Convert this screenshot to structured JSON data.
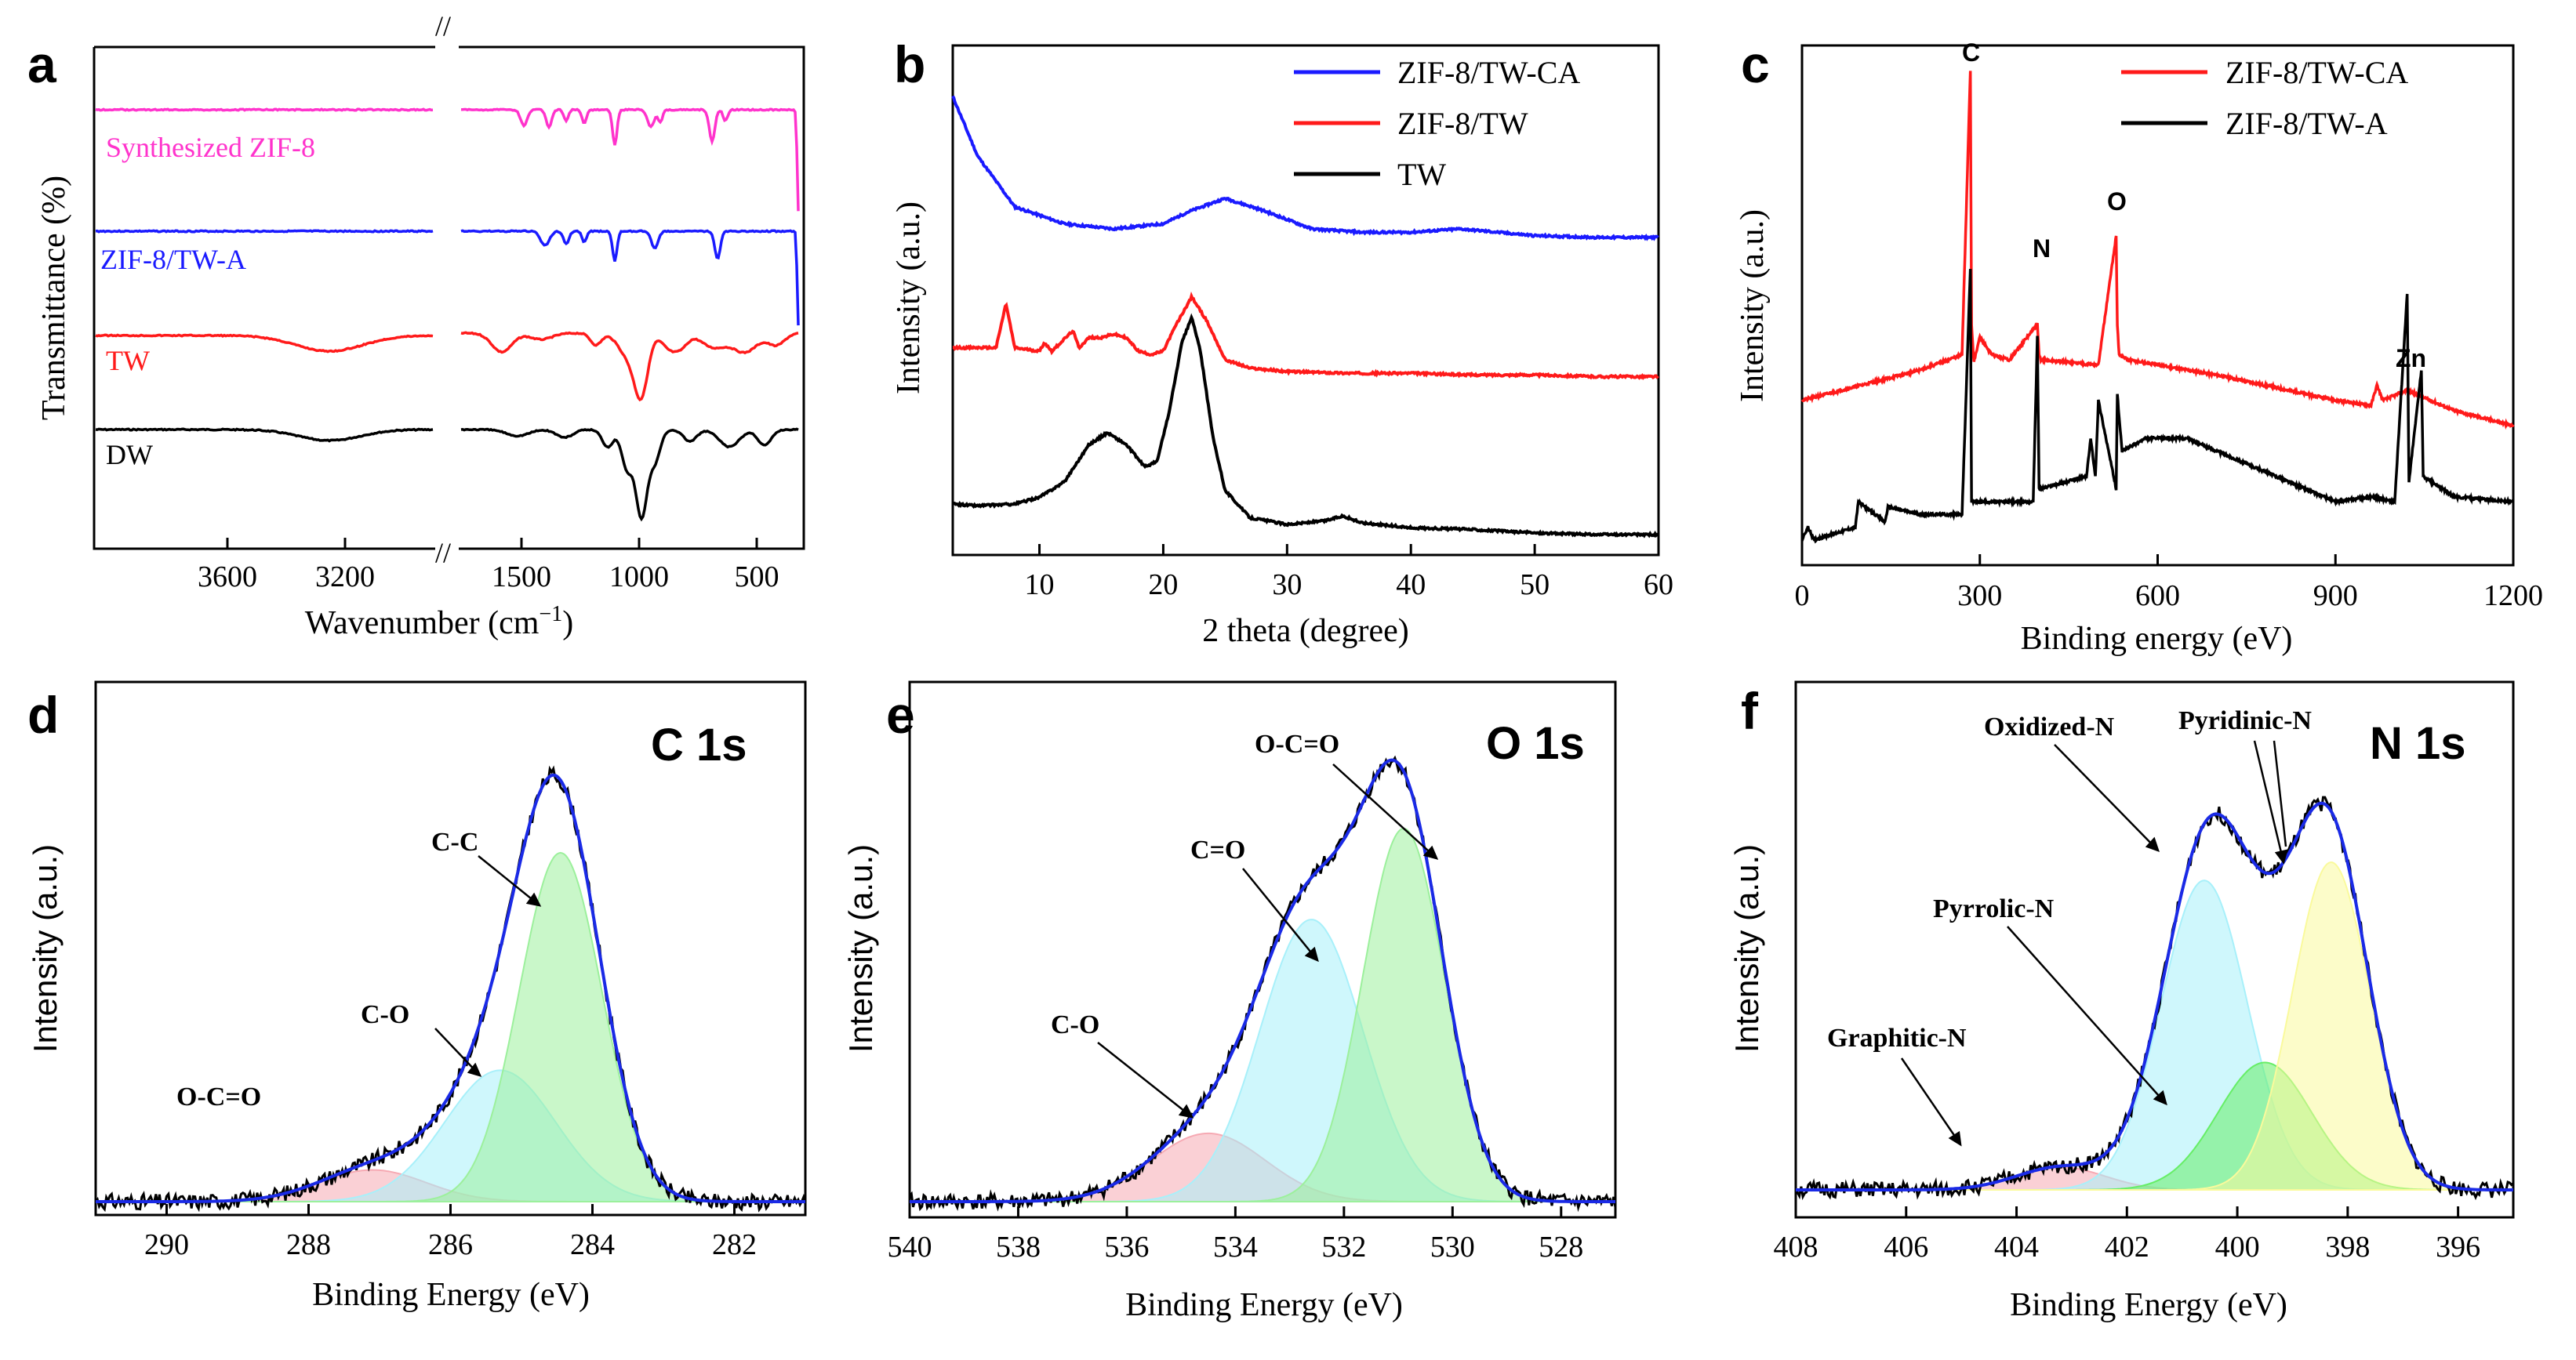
{
  "colors": {
    "blue": "#1a1aff",
    "red": "#ff1a1a",
    "black": "#000000",
    "magenta": "#ff33cc",
    "pinkfill": "#f6a9b3",
    "cyanfill": "#a8f0fa",
    "greenfill": "#9cf09c",
    "yellowfill": "#fafa9c",
    "envelope": "#1a2ae6"
  },
  "chart_data": [
    {
      "panel": "a",
      "type": "line",
      "xlabel": "Wavenumber (cm",
      "xlabel_sup": "−1",
      "xlabel_close": ")",
      "ylabel": "Transmittance (%)",
      "xticks_left": [
        3600,
        3200
      ],
      "xticks_right": [
        1500,
        1000,
        500
      ],
      "axis_break": "//",
      "series": [
        {
          "name": "Synthesized ZIF-8",
          "color": "#ff33cc"
        },
        {
          "name": "ZIF-8/TW-A",
          "color": "#1a1aff"
        },
        {
          "name": "TW",
          "color": "#ff1a1a"
        },
        {
          "name": "DW",
          "color": "#000000"
        }
      ]
    },
    {
      "panel": "b",
      "type": "line",
      "xlabel": "2 theta (degree)",
      "ylabel": "Intensity (a.u.)",
      "xlim": [
        3,
        60
      ],
      "xticks": [
        10,
        20,
        30,
        40,
        50,
        60
      ],
      "legend": [
        "ZIF-8/TW-CA",
        "ZIF-8/TW",
        "TW"
      ],
      "series": [
        {
          "name": "ZIF-8/TW-CA",
          "color": "#1a1aff",
          "x": [
            3,
            5,
            8,
            12,
            16,
            20,
            22,
            25,
            28,
            32,
            36,
            40,
            44,
            50,
            55,
            60
          ],
          "y": [
            2.6,
            2.25,
            1.95,
            1.85,
            1.82,
            1.85,
            1.92,
            2.0,
            1.93,
            1.82,
            1.8,
            1.8,
            1.82,
            1.78,
            1.77,
            1.77
          ]
        },
        {
          "name": "ZIF-8/TW",
          "color": "#ff1a1a",
          "x": [
            3,
            5,
            6.5,
            7.3,
            8,
            10,
            10.4,
            11,
            12.7,
            13.2,
            14,
            15,
            16,
            17,
            18,
            19,
            20,
            21,
            22.3,
            23.5,
            25,
            27,
            30,
            35,
            40,
            45,
            50,
            55,
            60
          ],
          "y": [
            1.12,
            1.12,
            1.12,
            1.38,
            1.12,
            1.1,
            1.15,
            1.1,
            1.22,
            1.12,
            1.18,
            1.18,
            1.2,
            1.18,
            1.1,
            1.08,
            1.1,
            1.25,
            1.42,
            1.28,
            1.05,
            1.0,
            0.98,
            0.97,
            0.97,
            0.96,
            0.96,
            0.95,
            0.95
          ]
        },
        {
          "name": "TW",
          "color": "#000000",
          "x": [
            3,
            5,
            8,
            10,
            12,
            14,
            15.5,
            17,
            18.5,
            19.5,
            20.5,
            21.5,
            22.3,
            23,
            24,
            25,
            27,
            30,
            33,
            34.5,
            36,
            40,
            45,
            50,
            55,
            60
          ],
          "y": [
            0.2,
            0.19,
            0.2,
            0.24,
            0.33,
            0.55,
            0.62,
            0.55,
            0.42,
            0.45,
            0.75,
            1.15,
            1.3,
            1.1,
            0.6,
            0.28,
            0.12,
            0.08,
            0.1,
            0.13,
            0.09,
            0.06,
            0.05,
            0.03,
            0.02,
            0.02
          ]
        }
      ]
    },
    {
      "panel": "c",
      "type": "line",
      "xlabel": "Binding energy (eV)",
      "ylabel": "Intensity (a.u.)",
      "xlim": [
        0,
        1200
      ],
      "xticks": [
        0,
        300,
        600,
        900,
        1200
      ],
      "legend": [
        "ZIF-8/TW-CA",
        "ZIF-8/TW-A"
      ],
      "peak_labels": [
        "C",
        "N",
        "O",
        "Zn"
      ],
      "series": [
        {
          "name": "ZIF-8/TW-CA",
          "color": "#ff1a1a",
          "x": [
            0,
            100,
            200,
            270,
            284,
            286,
            290,
            300,
            320,
            350,
            397,
            400,
            403,
            450,
            500,
            530,
            532,
            535,
            550,
            600,
            650,
            700,
            800,
            900,
            960,
            970,
            980,
            1000,
            1020,
            1040,
            1100,
            1200
          ],
          "y": [
            0.6,
            0.66,
            0.72,
            0.78,
            1.9,
            0.9,
            0.75,
            0.85,
            0.78,
            0.76,
            0.9,
            0.78,
            0.76,
            0.75,
            0.74,
            1.25,
            0.9,
            0.78,
            0.76,
            0.74,
            0.72,
            0.7,
            0.65,
            0.6,
            0.58,
            0.66,
            0.6,
            0.62,
            0.64,
            0.62,
            0.56,
            0.5
          ]
        },
        {
          "name": "ZIF-8/TW-A",
          "color": "#000000",
          "x": [
            0,
            10,
            20,
            90,
            95,
            140,
            145,
            200,
            270,
            284,
            286,
            300,
            390,
            397,
            400,
            480,
            487,
            495,
            500,
            530,
            532,
            540,
            580,
            650,
            700,
            800,
            900,
            960,
            1000,
            1021,
            1024,
            1045,
            1048,
            1100,
            1200
          ],
          "y": [
            0.05,
            0.1,
            0.05,
            0.1,
            0.2,
            0.12,
            0.18,
            0.15,
            0.15,
            1.12,
            0.2,
            0.2,
            0.2,
            0.85,
            0.25,
            0.3,
            0.45,
            0.3,
            0.6,
            0.25,
            0.62,
            0.4,
            0.45,
            0.45,
            0.4,
            0.3,
            0.2,
            0.22,
            0.2,
            1.02,
            0.28,
            0.72,
            0.3,
            0.22,
            0.2
          ]
        }
      ]
    },
    {
      "panel": "d",
      "type": "line",
      "title": "C 1s",
      "xlabel": "Binding Energy (eV)",
      "ylabel": "Intensity (a.u.)",
      "xlim": [
        291,
        281
      ],
      "xticks": [
        290,
        288,
        286,
        284,
        282
      ],
      "components": [
        {
          "name": "O-C=O",
          "center": 287.1,
          "height": 0.07,
          "sigma": 0.75,
          "fill": "#f6a9b3"
        },
        {
          "name": "C-O",
          "center": 285.3,
          "height": 0.29,
          "sigma": 0.78,
          "fill": "#a8f0fa"
        },
        {
          "name": "C-C",
          "center": 284.45,
          "height": 0.77,
          "sigma": 0.58,
          "fill": "#9cf09c"
        }
      ]
    },
    {
      "panel": "e",
      "type": "line",
      "title": "O 1s",
      "xlabel": "Binding Energy (eV)",
      "ylabel": "Intensity (a.u.)",
      "xlim": [
        540,
        527
      ],
      "xticks": [
        540,
        538,
        536,
        534,
        532,
        530,
        528
      ],
      "components": [
        {
          "name": "C-O",
          "center": 534.5,
          "height": 0.15,
          "sigma": 1.05,
          "fill": "#f6a9b3"
        },
        {
          "name": "C=O",
          "center": 532.6,
          "height": 0.62,
          "sigma": 0.95,
          "fill": "#a8f0fa"
        },
        {
          "name": "O-C=O",
          "center": 530.9,
          "height": 0.82,
          "sigma": 0.75,
          "fill": "#9cf09c"
        }
      ]
    },
    {
      "panel": "f",
      "type": "line",
      "title": "N 1s",
      "xlabel": "Binding Energy (eV)",
      "ylabel": "Intensity (a.u.)",
      "xlim": [
        408,
        395
      ],
      "xticks": [
        408,
        406,
        404,
        402,
        400,
        398,
        396
      ],
      "components": [
        {
          "name": "Graphitic-N",
          "center": 403.2,
          "height": 0.05,
          "sigma": 0.8,
          "fill": "#f6a9b3"
        },
        {
          "name": "Oxidized-N",
          "center": 400.6,
          "height": 0.68,
          "sigma": 0.78,
          "fill": "#a8f0fa"
        },
        {
          "name": "Pyrrolic-N",
          "center": 399.5,
          "height": 0.28,
          "sigma": 0.85,
          "fill": "#66ee66"
        },
        {
          "name": "Pyridinic-N",
          "center": 398.3,
          "height": 0.72,
          "sigma": 0.7,
          "fill": "#fafa9c"
        }
      ],
      "annotations": [
        "Oxidized-N",
        "Pyridinic-N",
        "Pyrrolic-N",
        "Graphitic-N"
      ]
    }
  ],
  "panel_labels": [
    "a",
    "b",
    "c",
    "d",
    "e",
    "f"
  ]
}
